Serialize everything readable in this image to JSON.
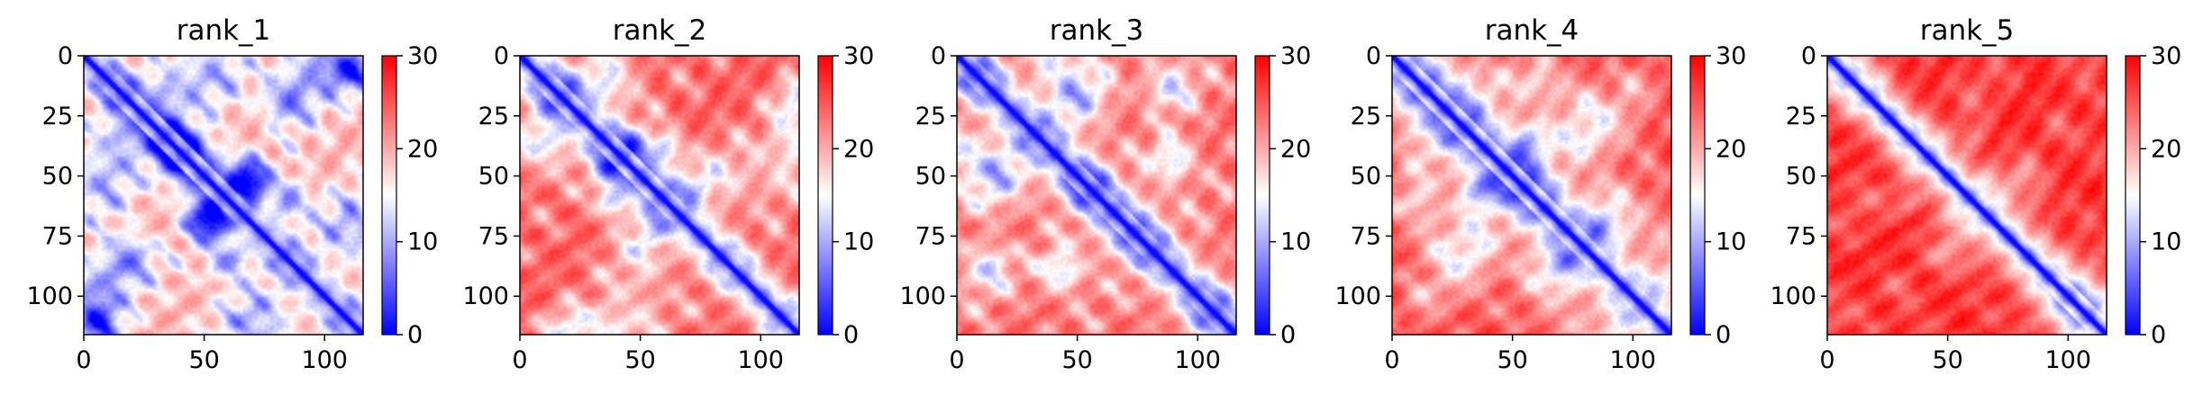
{
  "figure": {
    "colormap": "bwr",
    "colors": {
      "low": "#0000ff",
      "mid": "#ffffff",
      "high": "#ff0000"
    }
  },
  "chart_data": [
    {
      "type": "heatmap",
      "title": "rank_1",
      "matrix_size": 116,
      "xticks": [
        0,
        50,
        100
      ],
      "yticks": [
        0,
        25,
        50,
        75,
        100
      ],
      "xlim": [
        0,
        116
      ],
      "ylim": [
        116,
        0
      ],
      "color_range": [
        0,
        30
      ],
      "colorbar_ticks": [
        0,
        10,
        20,
        30
      ],
      "pattern": {
        "diag_width": 2.5,
        "base_far": 20,
        "band_spacing": 19,
        "band_amp": 8,
        "blob_strength": 0.65,
        "seed": 11
      }
    },
    {
      "type": "heatmap",
      "title": "rank_2",
      "matrix_size": 116,
      "xticks": [
        0,
        50,
        100
      ],
      "yticks": [
        0,
        25,
        50,
        75,
        100
      ],
      "xlim": [
        0,
        116
      ],
      "ylim": [
        116,
        0
      ],
      "color_range": [
        0,
        30
      ],
      "colorbar_ticks": [
        0,
        10,
        20,
        30
      ],
      "pattern": {
        "diag_width": 3.5,
        "base_far": 25,
        "band_spacing": 23,
        "band_amp": 6.5,
        "blob_strength": 0.45,
        "seed": 23
      }
    },
    {
      "type": "heatmap",
      "title": "rank_3",
      "matrix_size": 116,
      "xticks": [
        0,
        50,
        100
      ],
      "yticks": [
        0,
        25,
        50,
        75,
        100
      ],
      "xlim": [
        0,
        116
      ],
      "ylim": [
        116,
        0
      ],
      "color_range": [
        0,
        30
      ],
      "colorbar_ticks": [
        0,
        10,
        20,
        30
      ],
      "pattern": {
        "diag_width": 3.8,
        "base_far": 24,
        "band_spacing": 22,
        "band_amp": 7,
        "blob_strength": 0.5,
        "seed": 37
      }
    },
    {
      "type": "heatmap",
      "title": "rank_4",
      "matrix_size": 116,
      "xticks": [
        0,
        50,
        100
      ],
      "yticks": [
        0,
        25,
        50,
        75,
        100
      ],
      "xlim": [
        0,
        116
      ],
      "ylim": [
        116,
        0
      ],
      "color_range": [
        0,
        30
      ],
      "colorbar_ticks": [
        0,
        10,
        20,
        30
      ],
      "pattern": {
        "diag_width": 3.5,
        "base_far": 26,
        "band_spacing": 25,
        "band_amp": 5,
        "blob_strength": 0.35,
        "seed": 51
      }
    },
    {
      "type": "heatmap",
      "title": "rank_5",
      "matrix_size": 116,
      "xticks": [
        0,
        50,
        100
      ],
      "yticks": [
        0,
        25,
        50,
        75,
        100
      ],
      "xlim": [
        0,
        116
      ],
      "ylim": [
        116,
        0
      ],
      "color_range": [
        0,
        30
      ],
      "colorbar_ticks": [
        0,
        10,
        20,
        30
      ],
      "pattern": {
        "diag_width": 3.5,
        "base_far": 28,
        "band_spacing": 27,
        "band_amp": 3.5,
        "blob_strength": 0.2,
        "seed": 67
      }
    }
  ]
}
